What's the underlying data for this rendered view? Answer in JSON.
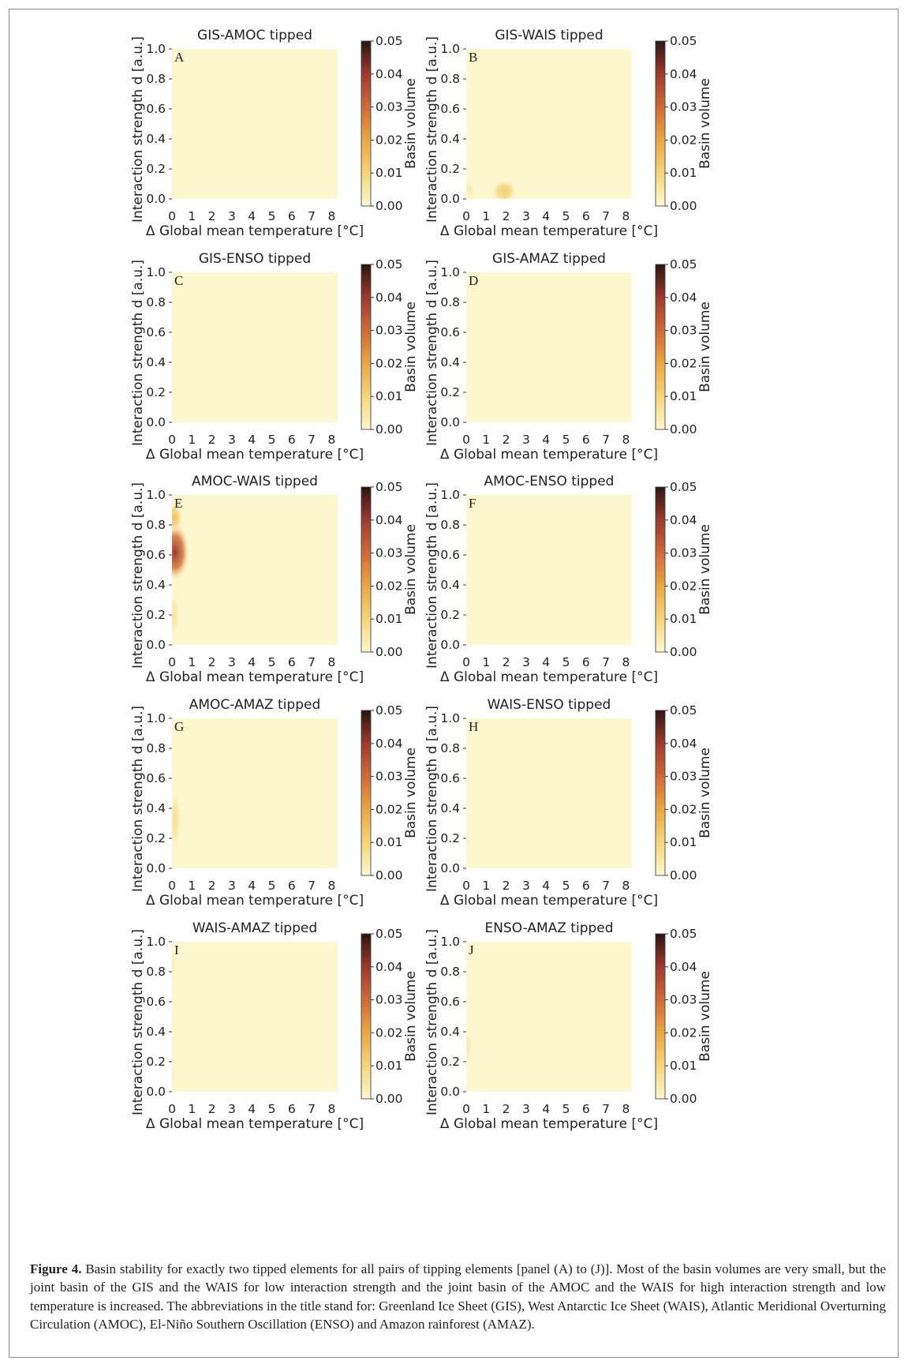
{
  "chart_data": {
    "type": "heatmap",
    "xlabel": "Δ Global mean temperature [°C]",
    "ylabel": "Interaction strength d [a.u.]",
    "xlim": [
      0,
      8.3
    ],
    "ylim": [
      0,
      1.0
    ],
    "x_ticks": [
      "0",
      "1",
      "2",
      "3",
      "4",
      "5",
      "6",
      "7",
      "8"
    ],
    "y_ticks": [
      "0.0",
      "0.2",
      "0.4",
      "0.6",
      "0.8",
      "1.0"
    ],
    "colorbar": {
      "label": "Basin volume",
      "range": [
        0,
        0.05
      ],
      "ticks": [
        "0.00",
        "0.01",
        "0.02",
        "0.03",
        "0.04",
        "0.05"
      ],
      "colormap": [
        "#fdf7cf",
        "#f6d57c",
        "#e9a743",
        "#cf6a3a",
        "#9b3b30",
        "#2e1510"
      ]
    },
    "grid": false,
    "panels": [
      {
        "label": "A",
        "title": "GIS-AMOC tipped",
        "blobs": []
      },
      {
        "label": "B",
        "title": "GIS-WAIS tipped",
        "blobs": [
          {
            "x": 1.9,
            "y": 0.05,
            "sx": 0.65,
            "sy": 0.08,
            "value": 0.012
          },
          {
            "x": 0.15,
            "y": 0.06,
            "sx": 0.3,
            "sy": 0.06,
            "value": 0.004
          }
        ]
      },
      {
        "label": "C",
        "title": "GIS-ENSO tipped",
        "blobs": []
      },
      {
        "label": "D",
        "title": "GIS-AMAZ tipped",
        "blobs": []
      },
      {
        "label": "E",
        "title": "AMOC-WAIS tipped",
        "blobs": [
          {
            "x": 0.15,
            "y": 0.62,
            "sx": 0.75,
            "sy": 0.2,
            "value": 0.04
          },
          {
            "x": 0.1,
            "y": 0.85,
            "sx": 0.45,
            "sy": 0.1,
            "value": 0.015
          },
          {
            "x": 0.1,
            "y": 0.2,
            "sx": 0.25,
            "sy": 0.15,
            "value": 0.006
          }
        ]
      },
      {
        "label": "F",
        "title": "AMOC-ENSO tipped",
        "blobs": []
      },
      {
        "label": "G",
        "title": "AMOC-AMAZ tipped",
        "blobs": [
          {
            "x": 0.15,
            "y": 0.32,
            "sx": 0.3,
            "sy": 0.2,
            "value": 0.007
          }
        ]
      },
      {
        "label": "H",
        "title": "WAIS-ENSO tipped",
        "blobs": [
          {
            "x": 0.05,
            "y": 0.18,
            "sx": 0.15,
            "sy": 0.08,
            "value": 0.002
          }
        ]
      },
      {
        "label": "I",
        "title": "WAIS-AMAZ tipped",
        "blobs": [
          {
            "x": 0.05,
            "y": 0.85,
            "sx": 0.15,
            "sy": 0.12,
            "value": 0.003
          },
          {
            "x": 0.05,
            "y": 0.12,
            "sx": 0.15,
            "sy": 0.08,
            "value": 0.002
          }
        ]
      },
      {
        "label": "J",
        "title": "ENSO-AMAZ tipped",
        "blobs": [
          {
            "x": 0.1,
            "y": 0.3,
            "sx": 0.2,
            "sy": 0.1,
            "value": 0.004
          }
        ]
      }
    ]
  },
  "caption": {
    "label": "Figure 4.",
    "text": "Basin stability for exactly two tipped elements for all pairs of tipping elements [panel (A) to (J)]. Most of the basin volumes are very small, but the joint basin of the GIS and the WAIS for low interaction strength and the joint basin of the AMOC and the WAIS for high interaction strength and low temperature is increased. The abbreviations in the title stand for: Greenland Ice Sheet (GIS), West Antarctic Ice Sheet (WAIS), Atlantic Meridional Overturning Circulation (AMOC), El-Niño Southern Oscillation (ENSO) and Amazon rainforest (AMAZ)."
  }
}
